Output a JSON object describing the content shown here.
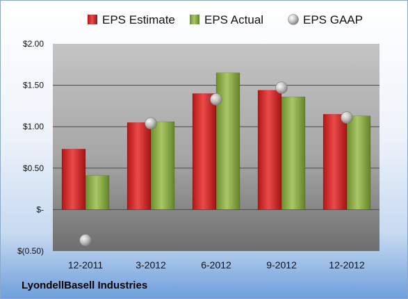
{
  "footer": {
    "company": "LyondellBasell Industries"
  },
  "chart_data": {
    "type": "bar",
    "title": "",
    "xlabel": "",
    "ylabel": "",
    "categories": [
      "12-2011",
      "3-2012",
      "6-2012",
      "9-2012",
      "12-2012"
    ],
    "series": [
      {
        "name": "EPS Estimate",
        "kind": "bar",
        "color": "#d42a2a",
        "values": [
          0.73,
          1.05,
          1.4,
          1.44,
          1.15
        ]
      },
      {
        "name": "EPS Actual",
        "kind": "bar",
        "color": "#8fb04a",
        "values": [
          0.41,
          1.06,
          1.65,
          1.36,
          1.13
        ]
      },
      {
        "name": "EPS GAAP",
        "kind": "marker",
        "color": "#b0b0b0",
        "values": [
          -0.37,
          1.04,
          1.33,
          1.47,
          1.11
        ]
      }
    ],
    "yticks": [
      {
        "value": 2.0,
        "label": "$2.00"
      },
      {
        "value": 1.5,
        "label": "$1.50"
      },
      {
        "value": 1.0,
        "label": "$1.00"
      },
      {
        "value": 0.5,
        "label": "$0.50"
      },
      {
        "value": 0.0,
        "label": "$-"
      },
      {
        "value": -0.5,
        "label": "$(0.50)"
      }
    ],
    "ylim": [
      -0.5,
      2.0
    ],
    "grid": true,
    "legend": "top"
  }
}
